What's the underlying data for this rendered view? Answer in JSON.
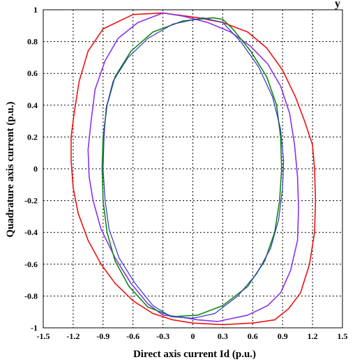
{
  "chart_data": {
    "type": "line",
    "title": "",
    "title_fragment": "y",
    "xlabel": "Direct axis current Id (p.u.)",
    "ylabel": "Quadrature axis current (p.u.)",
    "xlim": [
      -1.5,
      1.5
    ],
    "ylim": [
      -1,
      1
    ],
    "xticks": [
      "-1.5",
      "-1.2",
      "-0.9",
      "-0.6",
      "-0.3",
      "0",
      "0.3",
      "0.6",
      "0.9",
      "1.2",
      "1.5"
    ],
    "yticks": [
      "1",
      "0.8",
      "0.6",
      "0.4",
      "0.2",
      "0",
      "-0.2",
      "-0.4",
      "-0.6",
      "-0.8",
      "-1"
    ],
    "grid": true,
    "grid_style": "dotted",
    "series": [
      {
        "color": "#ee1111",
        "points": [
          [
            -0.3,
            0.98
          ],
          [
            -0.6,
            0.97
          ],
          [
            -0.9,
            0.88
          ],
          [
            -1.05,
            0.74
          ],
          [
            -1.14,
            0.55
          ],
          [
            -1.19,
            0.35
          ],
          [
            -1.22,
            0.2
          ],
          [
            -1.22,
            0.05
          ],
          [
            -1.2,
            -0.12
          ],
          [
            -1.15,
            -0.28
          ],
          [
            -1.05,
            -0.45
          ],
          [
            -0.92,
            -0.6
          ],
          [
            -0.78,
            -0.72
          ],
          [
            -0.6,
            -0.83
          ],
          [
            -0.4,
            -0.91
          ],
          [
            -0.2,
            -0.95
          ],
          [
            0,
            -0.97
          ],
          [
            0.3,
            -0.98
          ],
          [
            0.6,
            -0.97
          ],
          [
            0.82,
            -0.95
          ],
          [
            0.96,
            -0.88
          ],
          [
            1.08,
            -0.78
          ],
          [
            1.17,
            -0.6
          ],
          [
            1.22,
            -0.4
          ],
          [
            1.23,
            -0.2
          ],
          [
            1.22,
            0.0
          ],
          [
            1.2,
            0.15
          ],
          [
            1.12,
            0.3
          ],
          [
            1.03,
            0.45
          ],
          [
            0.9,
            0.62
          ],
          [
            0.74,
            0.76
          ],
          [
            0.55,
            0.86
          ],
          [
            0.3,
            0.92
          ],
          [
            0.05,
            0.95
          ],
          [
            -0.3,
            0.98
          ]
        ]
      },
      {
        "color": "#8833ee",
        "points": [
          [
            -0.3,
            0.98
          ],
          [
            -0.55,
            0.92
          ],
          [
            -0.75,
            0.82
          ],
          [
            -0.88,
            0.68
          ],
          [
            -0.98,
            0.5
          ],
          [
            -1.02,
            0.3
          ],
          [
            -1.05,
            0.12
          ],
          [
            -1.04,
            -0.05
          ],
          [
            -1.0,
            -0.2
          ],
          [
            -0.92,
            -0.38
          ],
          [
            -0.78,
            -0.56
          ],
          [
            -0.62,
            -0.72
          ],
          [
            -0.45,
            -0.85
          ],
          [
            -0.3,
            -0.92
          ],
          [
            -0.15,
            -0.93
          ],
          [
            0.05,
            -0.95
          ],
          [
            0.25,
            -0.96
          ],
          [
            0.55,
            -0.92
          ],
          [
            0.75,
            -0.86
          ],
          [
            0.88,
            -0.78
          ],
          [
            0.98,
            -0.64
          ],
          [
            1.05,
            -0.45
          ],
          [
            1.06,
            -0.25
          ],
          [
            1.05,
            -0.05
          ],
          [
            1.02,
            0.15
          ],
          [
            0.97,
            0.35
          ],
          [
            0.88,
            0.52
          ],
          [
            0.75,
            0.66
          ],
          [
            0.58,
            0.77
          ],
          [
            0.38,
            0.86
          ],
          [
            0.15,
            0.92
          ],
          [
            -0.1,
            0.96
          ],
          [
            -0.3,
            0.98
          ]
        ]
      },
      {
        "color": "#118811",
        "points": [
          [
            0.2,
            0.95
          ],
          [
            -0.1,
            0.93
          ],
          [
            -0.4,
            0.86
          ],
          [
            -0.62,
            0.74
          ],
          [
            -0.78,
            0.58
          ],
          [
            -0.86,
            0.4
          ],
          [
            -0.9,
            0.2
          ],
          [
            -0.91,
            0.0
          ],
          [
            -0.9,
            -0.2
          ],
          [
            -0.86,
            -0.4
          ],
          [
            -0.78,
            -0.58
          ],
          [
            -0.64,
            -0.74
          ],
          [
            -0.45,
            -0.87
          ],
          [
            -0.2,
            -0.93
          ],
          [
            0.05,
            -0.92
          ],
          [
            0.3,
            -0.86
          ],
          [
            0.55,
            -0.74
          ],
          [
            0.72,
            -0.58
          ],
          [
            0.82,
            -0.4
          ],
          [
            0.87,
            -0.2
          ],
          [
            0.89,
            0.0
          ],
          [
            0.88,
            0.2
          ],
          [
            0.84,
            0.4
          ],
          [
            0.74,
            0.58
          ],
          [
            0.58,
            0.74
          ],
          [
            0.4,
            0.88
          ],
          [
            0.3,
            0.94
          ],
          [
            0.2,
            0.95
          ]
        ]
      },
      {
        "color": "#3333cc",
        "points": [
          [
            0.1,
            0.95
          ],
          [
            -0.2,
            0.91
          ],
          [
            -0.45,
            0.82
          ],
          [
            -0.65,
            0.7
          ],
          [
            -0.8,
            0.55
          ],
          [
            -0.87,
            0.38
          ],
          [
            -0.89,
            0.2
          ],
          [
            -0.9,
            0.0
          ],
          [
            -0.88,
            -0.2
          ],
          [
            -0.84,
            -0.38
          ],
          [
            -0.74,
            -0.56
          ],
          [
            -0.58,
            -0.72
          ],
          [
            -0.4,
            -0.86
          ],
          [
            -0.22,
            -0.93
          ],
          [
            0.0,
            -0.94
          ],
          [
            0.22,
            -0.91
          ],
          [
            0.45,
            -0.8
          ],
          [
            0.64,
            -0.66
          ],
          [
            0.78,
            -0.5
          ],
          [
            0.86,
            -0.32
          ],
          [
            0.9,
            -0.12
          ],
          [
            0.91,
            0.05
          ],
          [
            0.88,
            0.25
          ],
          [
            0.8,
            0.45
          ],
          [
            0.66,
            0.64
          ],
          [
            0.48,
            0.8
          ],
          [
            0.3,
            0.92
          ],
          [
            0.1,
            0.95
          ]
        ]
      }
    ]
  }
}
